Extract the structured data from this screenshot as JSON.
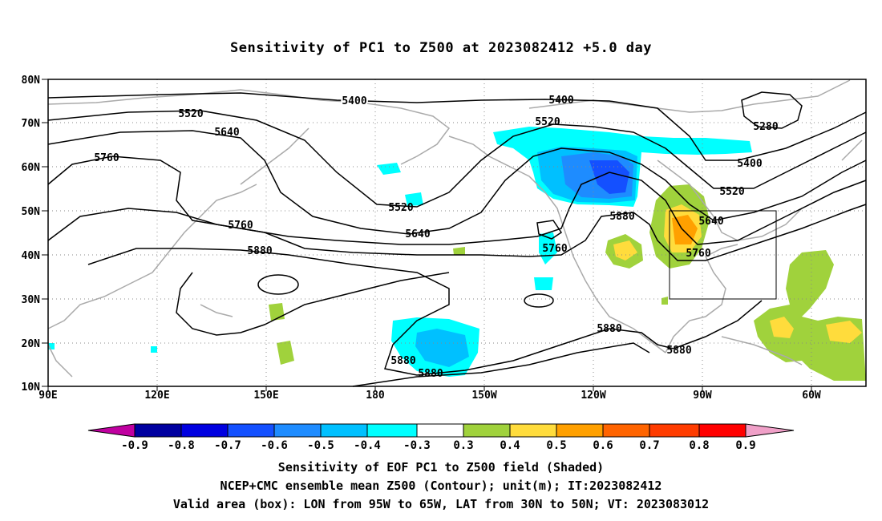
{
  "title": "Sensitivity of PC1 to Z500 at 2023082412 +5.0 day",
  "lat_labels": [
    "80N",
    "70N",
    "60N",
    "50N",
    "40N",
    "30N",
    "20N",
    "10N"
  ],
  "lon_labels": [
    "90E",
    "120E",
    "150E",
    "180",
    "150W",
    "120W",
    "90W",
    "60W"
  ],
  "contour_labels": [
    "5400",
    "5400",
    "5520",
    "5520",
    "5520",
    "5520",
    "5640",
    "5640",
    "5640",
    "5760",
    "5760",
    "5760",
    "5760",
    "5880",
    "5880",
    "5880",
    "5880",
    "5880",
    "5280",
    "5400"
  ],
  "colorbar": {
    "ticks": [
      "-0.9",
      "-0.8",
      "-0.7",
      "-0.6",
      "-0.5",
      "-0.4",
      "-0.3",
      "0.3",
      "0.4",
      "0.5",
      "0.6",
      "0.7",
      "0.8",
      "0.9"
    ],
    "colors": [
      "#c000a0",
      "#0000a0",
      "#0000e0",
      "#1450ff",
      "#1e8cff",
      "#00c0ff",
      "#00ffff",
      "#ffffff",
      "#a0d23c",
      "#ffdc3c",
      "#ffa000",
      "#ff6400",
      "#ff3c00",
      "#ff0000",
      "#f0a0c8"
    ]
  },
  "captions": {
    "line1": "Sensitivity of EOF PC1 to Z500 field (Shaded)",
    "line2": "NCEP+CMC ensemble mean Z500 (Contour); unit(m); IT:2023082412",
    "line3": "Valid area (box): LON from 95W to 65W, LAT from 30N to 50N; VT: 2023083012"
  }
}
